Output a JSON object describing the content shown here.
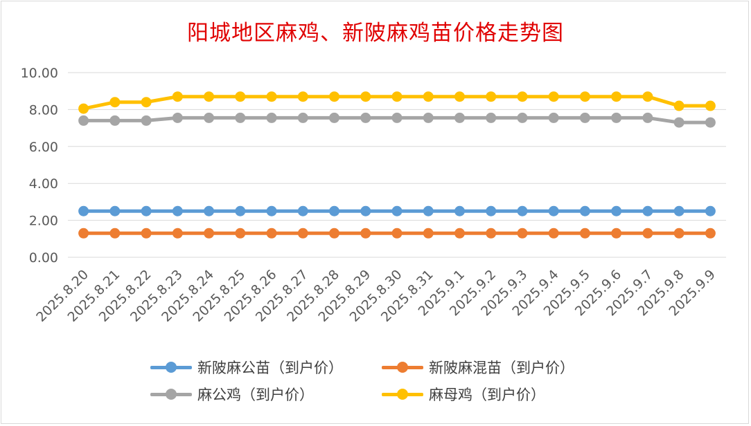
{
  "chart_data": {
    "type": "line",
    "title": "阳城地区麻鸡、新陂麻鸡苗价格走势图",
    "xlabel": "",
    "ylabel": "",
    "ylim": [
      0,
      10
    ],
    "yticks": [
      "0.00",
      "2.00",
      "4.00",
      "6.00",
      "8.00",
      "10.00"
    ],
    "grid": true,
    "legend_position": "bottom",
    "categories": [
      "2025.8.20",
      "2025.8.21",
      "2025.8.22",
      "2025.8.23",
      "2025.8.24",
      "2025.8.25",
      "2025.8.26",
      "2025.8.27",
      "2025.8.28",
      "2025.8.29",
      "2025.8.30",
      "2025.8.31",
      "2025.9.1",
      "2025.9.2",
      "2025.9.3",
      "2025.9.4",
      "2025.9.5",
      "2025.9.6",
      "2025.9.7",
      "2025.9.8",
      "2025.9.9"
    ],
    "series": [
      {
        "name": "新陂麻公苗（到户价）",
        "color": "#5b9bd5",
        "values": [
          2.5,
          2.5,
          2.5,
          2.5,
          2.5,
          2.5,
          2.5,
          2.5,
          2.5,
          2.5,
          2.5,
          2.5,
          2.5,
          2.5,
          2.5,
          2.5,
          2.5,
          2.5,
          2.5,
          2.5,
          2.5
        ]
      },
      {
        "name": "新陂麻混苗（到户价）",
        "color": "#ed7d31",
        "values": [
          1.3,
          1.3,
          1.3,
          1.3,
          1.3,
          1.3,
          1.3,
          1.3,
          1.3,
          1.3,
          1.3,
          1.3,
          1.3,
          1.3,
          1.3,
          1.3,
          1.3,
          1.3,
          1.3,
          1.3,
          1.3
        ]
      },
      {
        "name": "麻公鸡（到户价）",
        "color": "#a5a5a5",
        "values": [
          7.4,
          7.4,
          7.4,
          7.55,
          7.55,
          7.55,
          7.55,
          7.55,
          7.55,
          7.55,
          7.55,
          7.55,
          7.55,
          7.55,
          7.55,
          7.55,
          7.55,
          7.55,
          7.55,
          7.3,
          7.3
        ]
      },
      {
        "name": "麻母鸡（到户价）",
        "color": "#ffc000",
        "values": [
          8.05,
          8.4,
          8.4,
          8.7,
          8.7,
          8.7,
          8.7,
          8.7,
          8.7,
          8.7,
          8.7,
          8.7,
          8.7,
          8.7,
          8.7,
          8.7,
          8.7,
          8.7,
          8.7,
          8.2,
          8.2
        ]
      }
    ]
  }
}
